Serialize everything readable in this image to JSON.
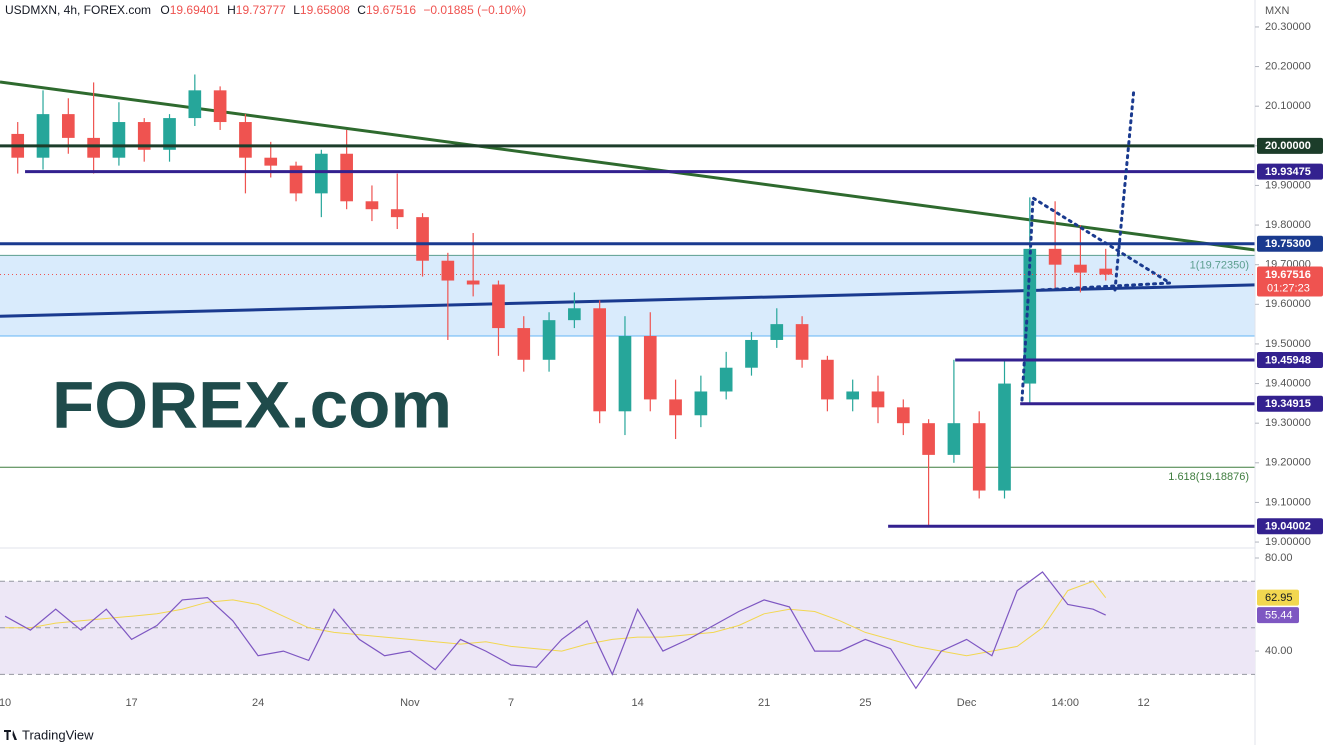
{
  "header": {
    "symbol": "USDMXN, 4h, FOREX.com",
    "ohlc": [
      {
        "label": "O",
        "value": "19.69401"
      },
      {
        "label": "H",
        "value": "19.73777"
      },
      {
        "label": "L",
        "value": "19.65808"
      },
      {
        "label": "C",
        "value": "19.67516"
      }
    ],
    "change": "−0.01885 (−0.10%)"
  },
  "logo": "FOREX.com",
  "footer": "TradingView",
  "chart_data": [
    {
      "type": "candlestick",
      "unit": "MXN",
      "up_color": "#26a69a",
      "down_color": "#ef5350",
      "x": [
        0.5,
        1.5,
        2.5,
        3.5,
        4.5,
        5.5,
        6.5,
        7.5,
        8.5,
        9.5,
        10.5,
        11.5,
        12.5,
        13.5,
        14.5,
        15.5,
        16.5,
        17.5,
        18.5,
        19.5,
        20.5,
        21.5,
        22.5,
        23.5,
        24.5,
        25.5,
        26.5,
        27.5,
        28.5,
        29.5,
        30.5,
        31.5,
        32.5,
        33.5,
        34.5,
        35.5,
        36.5,
        37.5,
        38.5,
        39.5,
        40.5,
        41.5,
        42.5,
        43.5
      ],
      "open": [
        20.03,
        19.97,
        20.08,
        20.02,
        19.97,
        20.06,
        19.99,
        20.07,
        20.14,
        20.06,
        19.97,
        19.95,
        19.88,
        19.98,
        19.86,
        19.84,
        19.82,
        19.71,
        19.66,
        19.65,
        19.54,
        19.46,
        19.56,
        19.59,
        19.33,
        19.52,
        19.36,
        19.32,
        19.38,
        19.44,
        19.51,
        19.55,
        19.46,
        19.36,
        19.38,
        19.34,
        19.3,
        19.22,
        19.3,
        19.13,
        19.4,
        19.74,
        19.7,
        19.69
      ],
      "high": [
        20.06,
        20.14,
        20.12,
        20.16,
        20.11,
        20.07,
        20.08,
        20.18,
        20.15,
        20.08,
        20.01,
        19.96,
        19.99,
        20.04,
        19.9,
        19.93,
        19.83,
        19.73,
        19.78,
        19.66,
        19.57,
        19.58,
        19.63,
        19.61,
        19.57,
        19.58,
        19.41,
        19.42,
        19.48,
        19.53,
        19.59,
        19.57,
        19.47,
        19.41,
        19.42,
        19.36,
        19.31,
        19.46,
        19.33,
        19.46,
        19.87,
        19.86,
        19.8,
        19.74
      ],
      "low": [
        19.93,
        19.94,
        19.98,
        19.93,
        19.95,
        19.96,
        19.96,
        20.05,
        20.04,
        19.88,
        19.92,
        19.86,
        19.82,
        19.84,
        19.81,
        19.79,
        19.67,
        19.51,
        19.62,
        19.47,
        19.43,
        19.43,
        19.54,
        19.3,
        19.27,
        19.33,
        19.26,
        19.29,
        19.36,
        19.42,
        19.49,
        19.44,
        19.33,
        19.33,
        19.3,
        19.27,
        19.04,
        19.2,
        19.11,
        19.11,
        19.35,
        19.64,
        19.63,
        19.66
      ],
      "close": [
        19.97,
        20.08,
        20.02,
        19.97,
        20.06,
        19.99,
        20.07,
        20.14,
        20.06,
        19.97,
        19.95,
        19.88,
        19.98,
        19.86,
        19.84,
        19.82,
        19.71,
        19.66,
        19.65,
        19.54,
        19.46,
        19.56,
        19.59,
        19.33,
        19.52,
        19.36,
        19.32,
        19.38,
        19.44,
        19.51,
        19.55,
        19.46,
        19.36,
        19.38,
        19.34,
        19.3,
        19.22,
        19.3,
        19.13,
        19.4,
        19.74,
        19.7,
        19.68,
        19.675
      ],
      "xlim": [
        -0.2,
        49.4
      ],
      "xticks": [
        {
          "value": 0,
          "label": "10"
        },
        {
          "value": 5,
          "label": "17"
        },
        {
          "value": 10,
          "label": "24"
        },
        {
          "value": 16,
          "label": "Nov"
        },
        {
          "value": 20,
          "label": "7"
        },
        {
          "value": 25,
          "label": "14"
        },
        {
          "value": 30,
          "label": "21"
        },
        {
          "value": 34,
          "label": "25"
        },
        {
          "value": 38,
          "label": "Dec"
        },
        {
          "value": 41.9,
          "label": "14:00"
        },
        {
          "value": 45,
          "label": "12"
        }
      ],
      "ylim": [
        18.985,
        20.368
      ],
      "yticks": [
        {
          "value": 19.0,
          "label": "19.00000"
        },
        {
          "value": 19.1,
          "label": "19.10000"
        },
        {
          "value": 19.2,
          "label": "19.20000"
        },
        {
          "value": 19.3,
          "label": "19.30000"
        },
        {
          "value": 19.4,
          "label": "19.40000"
        },
        {
          "value": 19.5,
          "label": "19.50000"
        },
        {
          "value": 19.6,
          "label": "19.60000"
        },
        {
          "value": 19.7,
          "label": "19.70000"
        },
        {
          "value": 19.8,
          "label": "19.80000"
        },
        {
          "value": 19.9,
          "label": "19.90000"
        },
        {
          "value": 20.0,
          "label": "20.00000"
        },
        {
          "value": 20.1,
          "label": "20.10000"
        },
        {
          "value": 20.2,
          "label": "20.20000"
        },
        {
          "value": 20.3,
          "label": "20.30000"
        }
      ],
      "zone": {
        "y": [
          19.52,
          19.7235
        ],
        "color": "#cfe6fb"
      },
      "fib": [
        {
          "value": 19.7235,
          "label": "1(19.72350)",
          "color": "#5c9e8f"
        },
        {
          "value": 19.18876,
          "label": "1.618(19.18876)",
          "color": "#3f7d3f"
        }
      ],
      "levels": [
        {
          "value": 20,
          "label": "20.00000",
          "color": "#1c3d2a",
          "x0": -0.2
        },
        {
          "value": 19.93475,
          "label": "19.93475",
          "color": "#33218f",
          "x0": 0.79
        },
        {
          "value": 19.753,
          "label": "19.75300",
          "color": "#1a3a8f",
          "x0": -0.2
        },
        {
          "value": 19.45948,
          "label": "19.45948",
          "color": "#33218f",
          "x0": 37.55
        },
        {
          "value": 19.34915,
          "label": "19.34915",
          "color": "#33218f",
          "x0": 40.12
        },
        {
          "value": 19.04002,
          "label": "19.04002",
          "color": "#33218f",
          "x0": 34.9
        }
      ],
      "trendlines": [
        {
          "x": [
            -0.2,
            49.4
          ],
          "y": [
            20.161,
            19.737
          ],
          "color": "#2e6a2e"
        },
        {
          "x": [
            -0.2,
            49.4
          ],
          "y": [
            19.57,
            19.649
          ],
          "color": "#1a3a8f"
        }
      ],
      "last_price": 19.67516,
      "countdown": "01:27:23"
    },
    {
      "type": "line",
      "x": [
        0,
        1,
        2,
        3,
        4,
        5,
        6,
        7,
        8,
        9,
        10,
        11,
        12,
        13,
        14,
        15,
        16,
        17,
        18,
        19,
        20,
        21,
        22,
        23,
        24,
        25,
        26,
        27,
        28,
        29,
        30,
        31,
        32,
        33,
        34,
        35,
        36,
        37,
        38,
        39,
        40,
        41,
        42,
        43,
        43.5
      ],
      "series": [
        {
          "color": "#7e57c2",
          "values": [
            55,
            49,
            58,
            49,
            58,
            45,
            51,
            62,
            63,
            53,
            38,
            40,
            36,
            58,
            45,
            38,
            40,
            32,
            45,
            40,
            34,
            33,
            45,
            53,
            30,
            58,
            40,
            45,
            51,
            57,
            62,
            59,
            40,
            40,
            45,
            41,
            24,
            40,
            45,
            38,
            66,
            74,
            60,
            58,
            55.44
          ]
        },
        {
          "color": "#f2d750",
          "values": [
            50,
            50,
            52,
            53,
            54,
            55,
            56,
            58,
            61,
            62,
            60,
            55,
            50,
            48,
            47,
            46,
            45,
            44,
            43,
            44,
            42,
            41,
            40,
            43,
            45,
            46,
            46,
            47,
            48,
            51,
            56,
            58,
            57,
            53,
            48,
            45,
            42,
            40,
            38,
            40,
            42,
            50,
            66,
            70,
            62.95
          ]
        }
      ],
      "ylim": [
        22.4,
        84.3
      ],
      "yticks": [
        {
          "value": 80,
          "label": "80.00"
        },
        {
          "value": 40,
          "label": "40.00"
        }
      ],
      "levels": [
        70,
        50,
        30
      ],
      "band_color": "#ede7f6"
    }
  ]
}
